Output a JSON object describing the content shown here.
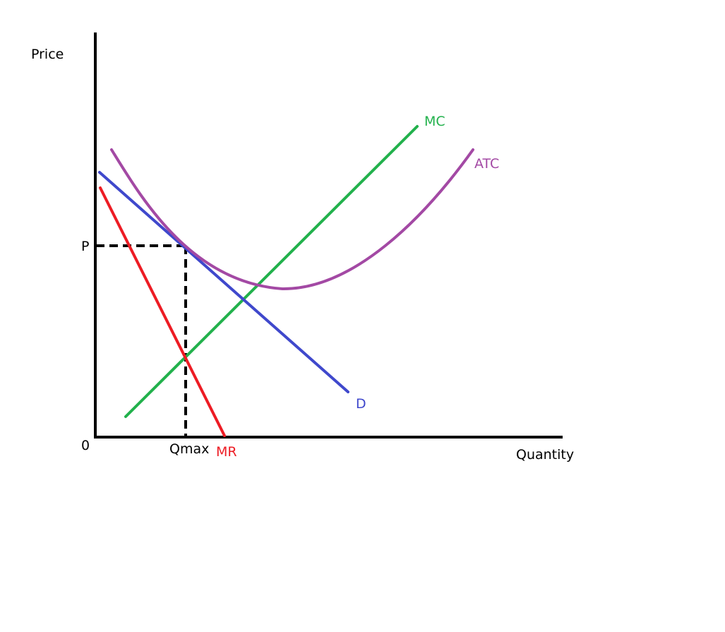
{
  "axes": {
    "y_label": "Price",
    "x_label": "Quantity",
    "origin_label": "0"
  },
  "markers": {
    "price_label": "P",
    "quantity_label": "Qmax"
  },
  "curves": {
    "mc": {
      "label": "MC",
      "color": "#22b14c"
    },
    "atc": {
      "label": "ATC",
      "color": "#a349a4"
    },
    "demand": {
      "label": "D",
      "color": "#3f48cc"
    },
    "mr": {
      "label": "MR",
      "color": "#ed1c24"
    }
  },
  "colors": {
    "axis": "#000000",
    "text": "#000000"
  }
}
